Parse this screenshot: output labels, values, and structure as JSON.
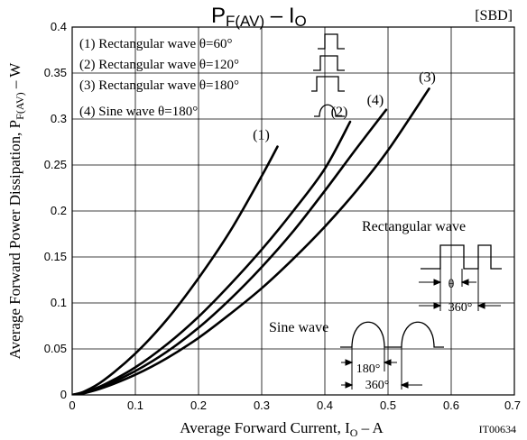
{
  "chart_data": {
    "type": "line",
    "title": "P",
    "title_sub": "F(AV)",
    "title_sep": " – ",
    "title_x": "I",
    "title_x_sub": "O",
    "tag": "[SBD]",
    "xlabel": {
      "pre": "Average Forward Current, I",
      "sub": "O",
      "post": " – A"
    },
    "ylabel": {
      "pre": "Average Forward Power Dissipation, P",
      "sub": "F(AV)",
      "post": " – W"
    },
    "xlim": [
      0,
      0.7
    ],
    "ylim": [
      0,
      0.4
    ],
    "xticks": [
      "0",
      "0.1",
      "0.2",
      "0.3",
      "0.4",
      "0.5",
      "0.6",
      "0.7"
    ],
    "yticks": [
      "0",
      "0.05",
      "0.1",
      "0.15",
      "0.2",
      "0.25",
      "0.3",
      "0.35",
      "0.4"
    ],
    "grid": true,
    "code": "IT00634",
    "legend": [
      "(1) Rectangular wave θ=60°",
      "(2) Rectangular wave θ=120°",
      "(3) Rectangular wave θ=180°",
      "(4) Sine wave θ=180°"
    ],
    "series": [
      {
        "label": "(1)",
        "points": [
          [
            0,
            0
          ],
          [
            0.02,
            0.004
          ],
          [
            0.05,
            0.016
          ],
          [
            0.1,
            0.045
          ],
          [
            0.15,
            0.082
          ],
          [
            0.2,
            0.127
          ],
          [
            0.25,
            0.178
          ],
          [
            0.3,
            0.238
          ],
          [
            0.325,
            0.27
          ]
        ]
      },
      {
        "label": "(2)",
        "points": [
          [
            0,
            0
          ],
          [
            0.02,
            0.003
          ],
          [
            0.05,
            0.011
          ],
          [
            0.1,
            0.03
          ],
          [
            0.15,
            0.055
          ],
          [
            0.2,
            0.085
          ],
          [
            0.25,
            0.12
          ],
          [
            0.3,
            0.158
          ],
          [
            0.35,
            0.2
          ],
          [
            0.4,
            0.246
          ],
          [
            0.44,
            0.297
          ]
        ]
      },
      {
        "label": "(3)",
        "points": [
          [
            0,
            0
          ],
          [
            0.02,
            0.002
          ],
          [
            0.05,
            0.008
          ],
          [
            0.1,
            0.022
          ],
          [
            0.15,
            0.04
          ],
          [
            0.2,
            0.062
          ],
          [
            0.25,
            0.088
          ],
          [
            0.3,
            0.116
          ],
          [
            0.35,
            0.148
          ],
          [
            0.4,
            0.183
          ],
          [
            0.45,
            0.222
          ],
          [
            0.5,
            0.266
          ],
          [
            0.565,
            0.333
          ]
        ]
      },
      {
        "label": "(4)",
        "points": [
          [
            0,
            0
          ],
          [
            0.02,
            0.0025
          ],
          [
            0.05,
            0.0095
          ],
          [
            0.1,
            0.026
          ],
          [
            0.15,
            0.047
          ],
          [
            0.2,
            0.073
          ],
          [
            0.25,
            0.104
          ],
          [
            0.3,
            0.139
          ],
          [
            0.35,
            0.178
          ],
          [
            0.4,
            0.222
          ],
          [
            0.45,
            0.268
          ],
          [
            0.497,
            0.31
          ]
        ]
      }
    ],
    "inset": {
      "rect_title": "Rectangular wave",
      "theta": "θ",
      "rect_period": "360°",
      "sine_title": "Sine wave",
      "sine_half": "180°",
      "sine_period": "360°"
    }
  }
}
